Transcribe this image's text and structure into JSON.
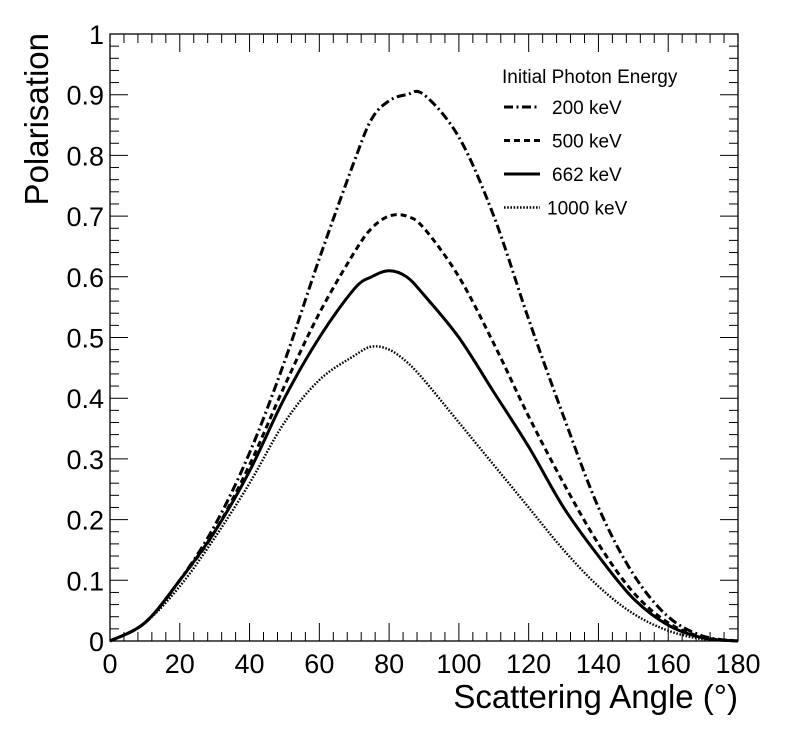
{
  "chart_data": {
    "type": "line",
    "title": "",
    "xlabel": "Scattering Angle (°)",
    "ylabel": "Polarisation",
    "xlim": [
      0,
      180
    ],
    "ylim": [
      0,
      1
    ],
    "x_major_ticks": [
      0,
      20,
      40,
      60,
      80,
      100,
      120,
      140,
      160,
      180
    ],
    "x_minor_step": 4,
    "y_major_ticks": [
      0,
      0.1,
      0.2,
      0.3,
      0.4,
      0.5,
      0.6,
      0.7,
      0.8,
      0.9,
      1
    ],
    "y_tick_labels": [
      "0",
      "0.1",
      "0.2",
      "0.3",
      "0.4",
      "0.5",
      "0.6",
      "0.7",
      "0.8",
      "0.9",
      "1"
    ],
    "y_minor_step": 0.02,
    "grid": false,
    "legend": {
      "title": "Initial Photon Energy",
      "placement": "top-right"
    },
    "x": [
      0,
      10,
      20,
      30,
      40,
      50,
      60,
      70,
      75,
      80,
      85,
      90,
      100,
      110,
      120,
      130,
      140,
      150,
      160,
      170,
      180
    ],
    "series": [
      {
        "name": "200 keV",
        "style": "dashdot",
        "values": [
          0,
          0.03,
          0.1,
          0.19,
          0.31,
          0.46,
          0.63,
          0.79,
          0.86,
          0.89,
          0.9,
          0.9,
          0.83,
          0.7,
          0.53,
          0.37,
          0.22,
          0.11,
          0.04,
          0.008,
          0
        ]
      },
      {
        "name": "500 keV",
        "style": "dashed",
        "values": [
          0,
          0.03,
          0.1,
          0.18,
          0.29,
          0.42,
          0.54,
          0.64,
          0.68,
          0.7,
          0.7,
          0.68,
          0.6,
          0.49,
          0.37,
          0.26,
          0.16,
          0.08,
          0.03,
          0.006,
          0
        ]
      },
      {
        "name": "662 keV",
        "style": "solid",
        "values": [
          0,
          0.03,
          0.1,
          0.18,
          0.28,
          0.4,
          0.5,
          0.58,
          0.6,
          0.61,
          0.6,
          0.57,
          0.5,
          0.41,
          0.32,
          0.22,
          0.14,
          0.07,
          0.026,
          0.005,
          0
        ]
      },
      {
        "name": "1000 keV",
        "style": "dotted",
        "values": [
          0,
          0.03,
          0.09,
          0.17,
          0.26,
          0.36,
          0.43,
          0.47,
          0.485,
          0.48,
          0.46,
          0.43,
          0.36,
          0.29,
          0.22,
          0.15,
          0.09,
          0.045,
          0.017,
          0.003,
          0
        ]
      }
    ]
  }
}
